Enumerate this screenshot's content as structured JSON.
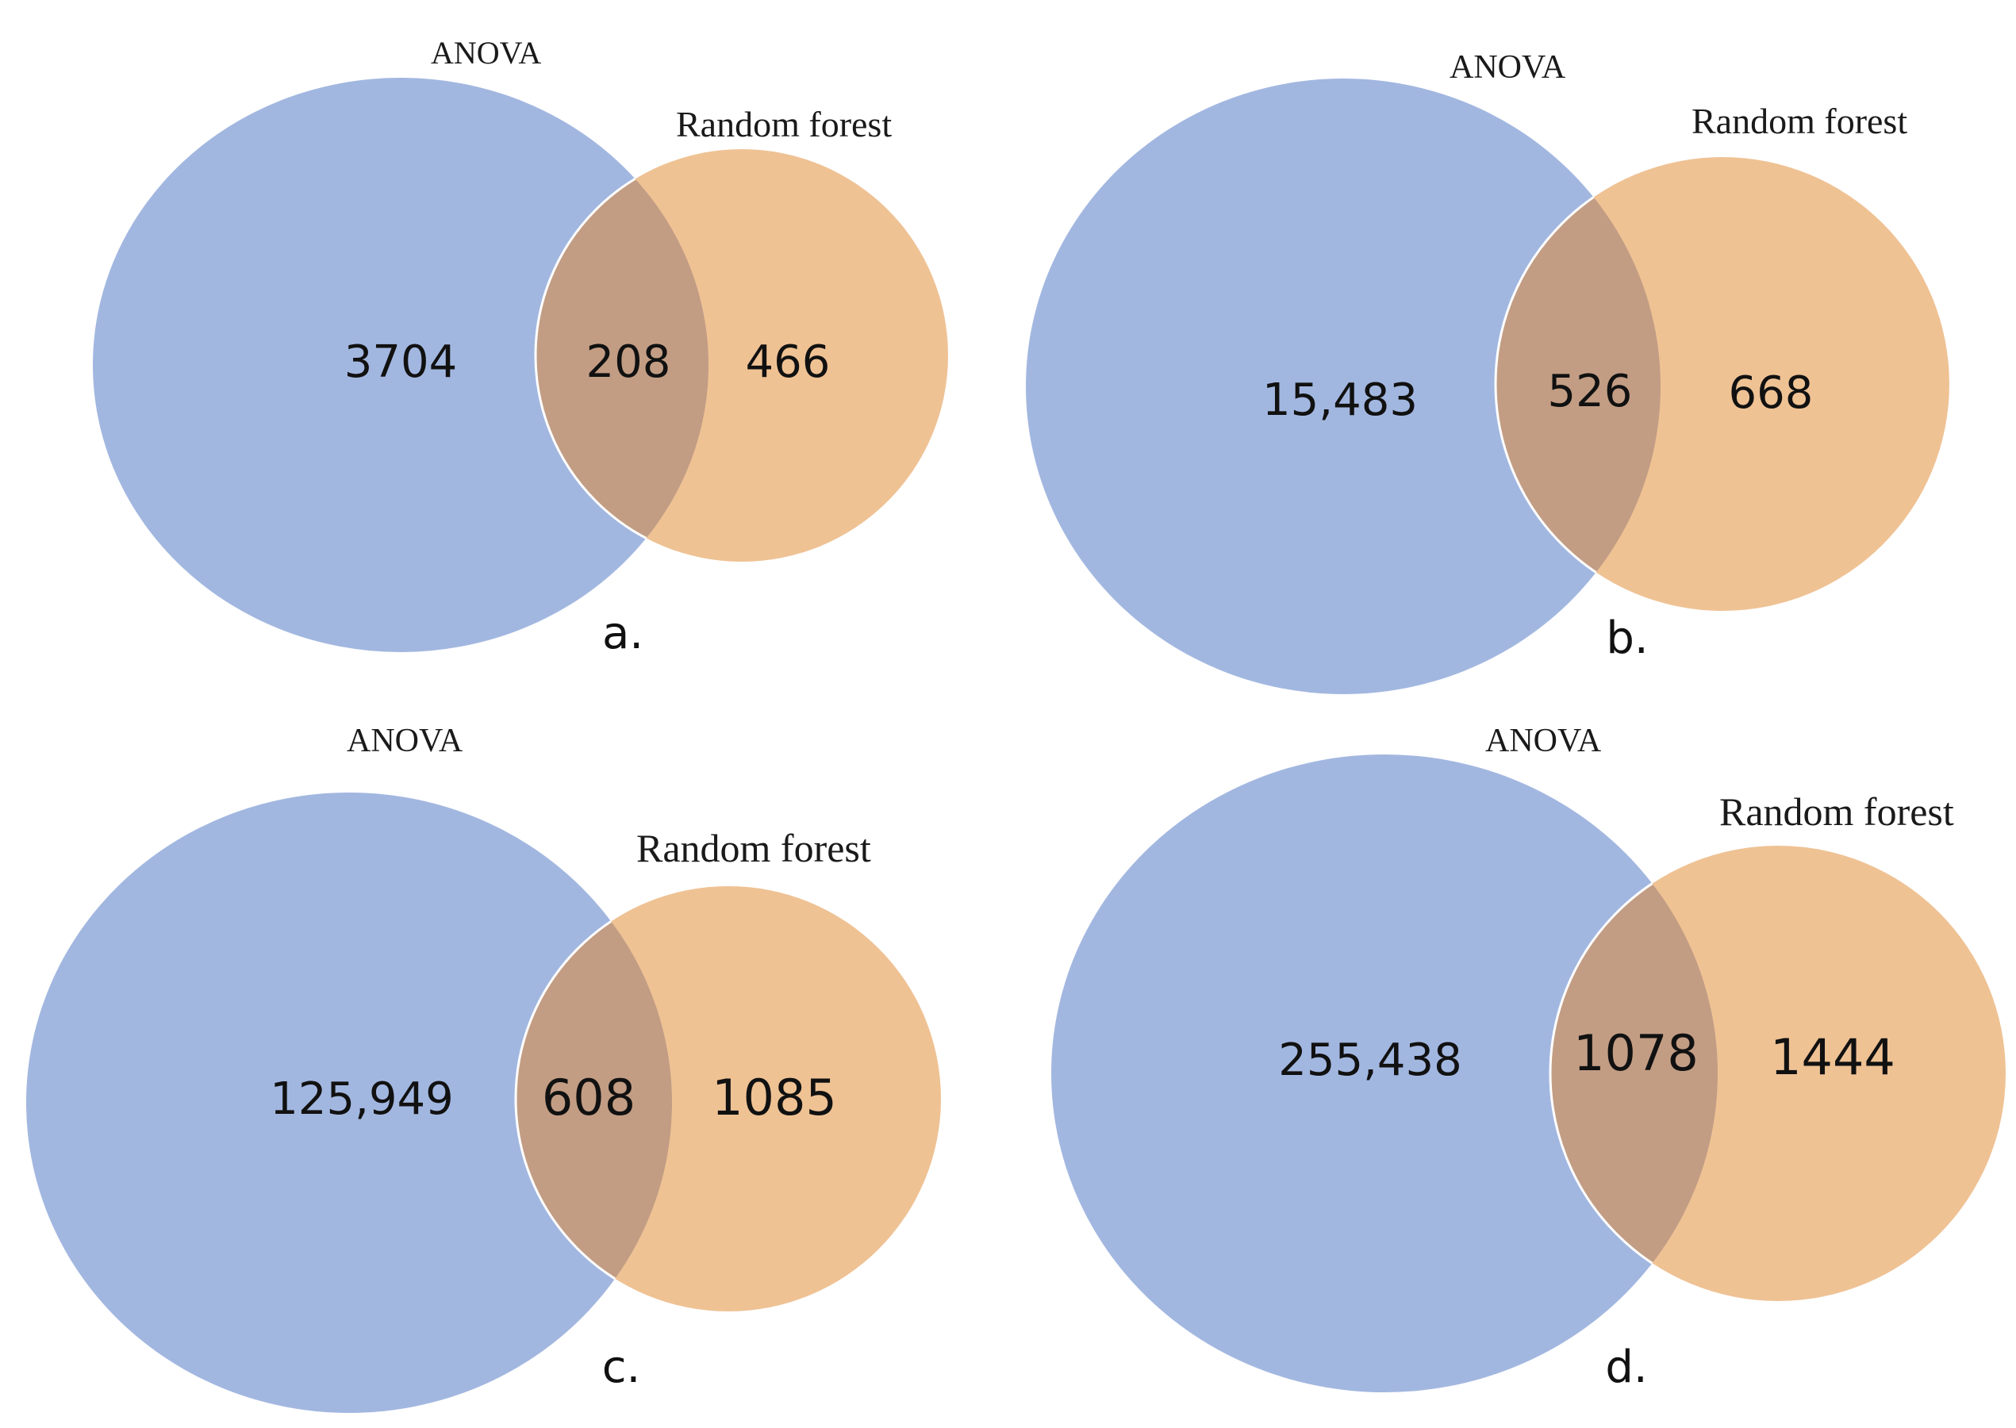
{
  "figure": {
    "colors": {
      "anova": "#a2b7e0",
      "random_forest": "#efc294",
      "overlap": "#c29d84",
      "overlap_edge": "#ffffff"
    },
    "panels": [
      {
        "id": "a",
        "letter": "a.",
        "set_a_label": "ANOVA",
        "set_b_label": "Random forest",
        "only_a": "3704",
        "both": "208",
        "only_b": "466"
      },
      {
        "id": "b",
        "letter": "b.",
        "set_a_label": "ANOVA",
        "set_b_label": "Random forest",
        "only_a": "15,483",
        "both": "526",
        "only_b": "668"
      },
      {
        "id": "c",
        "letter": "c.",
        "set_a_label": "ANOVA",
        "set_b_label": "Random forest",
        "only_a": "125,949",
        "both": "608",
        "only_b": "1085"
      },
      {
        "id": "d",
        "letter": "d.",
        "set_a_label": "ANOVA",
        "set_b_label": "Random forest",
        "only_a": "255,438",
        "both": "1078",
        "only_b": "1444"
      }
    ]
  }
}
